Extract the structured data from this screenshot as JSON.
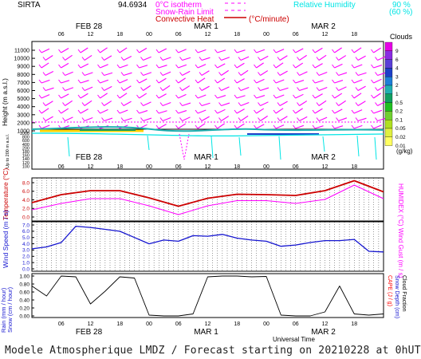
{
  "header": {
    "site": "SIRTA",
    "coord": "94.6934",
    "legend_iso": "0°C isotherm",
    "legend_snow": "Snow-Rain Limit",
    "legend_conv": "Convective Heat",
    "legend_conv_unit": "(°C/minute)",
    "legend_rh": "Relative Humidity",
    "rh_high": "90 %",
    "rh_low": "(60 %)",
    "day_labels": [
      "FEB 28",
      "MAR 1",
      "MAR 2"
    ],
    "hour_labels": [
      "06",
      "12",
      "18",
      "00",
      "06",
      "12",
      "18",
      "00",
      "06",
      "12",
      "18"
    ]
  },
  "colors": {
    "magenta": "#ff00ff",
    "red": "#cc0000",
    "cyan": "#00e5e5",
    "blue": "#1515d0",
    "black": "#000000"
  },
  "footer": "Modele Atmospherique LMDZ / Forecast starting on 20210228 at 0hUT",
  "panels": {
    "wind": {
      "ylabel": "Height (m a.s.l.)",
      "yticks": [
        "11000",
        "10000",
        "9000",
        "8000",
        "7000",
        "6000",
        "5000",
        "4000",
        "3000",
        "2000",
        "1000"
      ],
      "lowticks": [
        "1000",
        "800",
        "600",
        "400",
        "200",
        "180",
        "160",
        "140",
        "120",
        "100"
      ],
      "lowlabel": "Up to 200 m a.s.l."
    },
    "cloud_scale": {
      "title": "Clouds",
      "unit": "(g/kg)",
      "levels": [
        "9",
        "6",
        "4",
        "3",
        "2",
        "1",
        "0.5",
        "0.2",
        "0.1",
        "0.05",
        "0.02",
        "0.01"
      ],
      "colors": [
        "#e600e6",
        "#8a2be2",
        "#5a3fd8",
        "#1e3fc8",
        "#1e7fd8",
        "#20b0b0",
        "#10a060",
        "#20c020",
        "#70d030",
        "#b0e020",
        "#e0f040",
        "#ffff60"
      ]
    },
    "temp": {
      "ylabel": "Temperature (°C)",
      "rlabel": "HUMIDEX (°C)",
      "yticks": [
        "8.0",
        "6.0",
        "4.0",
        "2.0",
        "0.0"
      ]
    },
    "windspeed": {
      "ylabel": "Wind Speed (m / s)",
      "rlabel": "Wind Gust (m / s)",
      "yticks": [
        "7.0",
        "6.0",
        "5.0",
        "4.0",
        "3.0",
        "2.0",
        "1.0",
        "0.0"
      ]
    },
    "rain": {
      "ylabel": "Rain (mm / hour)",
      "ylabel2": "Snow (cm / hour)",
      "rlabel": "CAPE (J / g)",
      "rlabel2": "Snow Depth (cm)",
      "rlabel3": "Cloud Fraction",
      "yticks": [
        "1.00",
        "0.80",
        "0.60",
        "0.40",
        "0.20",
        "0.00"
      ],
      "xlabel": "Universal Time"
    }
  },
  "chart_data": [
    {
      "type": "line",
      "title": "Temperature",
      "ylabel": "Temperature (°C)",
      "ylim": [
        0,
        9
      ],
      "x_hours": [
        0,
        6,
        12,
        18,
        24,
        30,
        36,
        42,
        48,
        54,
        60,
        66,
        72
      ],
      "series": [
        {
          "name": "Temperature",
          "color": "#cc0000",
          "values": [
            3.8,
            5.8,
            6.8,
            6.8,
            5.0,
            2.9,
            4.9,
            5.9,
            5.8,
            5.6,
            6.8,
            9.3,
            6.5
          ]
        },
        {
          "name": "HUMIDEX",
          "color": "#ff00ff",
          "values": [
            2.0,
            3.6,
            4.8,
            4.8,
            3.0,
            0.8,
            3.0,
            4.3,
            4.3,
            3.6,
            4.6,
            8.2,
            4.8
          ]
        }
      ]
    },
    {
      "type": "line",
      "title": "Wind Speed",
      "ylabel": "Wind Speed (m / s)",
      "ylim": [
        0,
        7
      ],
      "x_hours": [
        0,
        3,
        6,
        9,
        12,
        15,
        18,
        21,
        24,
        27,
        30,
        33,
        36,
        39,
        42,
        45,
        48,
        51,
        54,
        57,
        60,
        63,
        66,
        69,
        72
      ],
      "series": [
        {
          "name": "Wind Speed",
          "color": "#1515d0",
          "values": [
            3.2,
            3.5,
            4.2,
            6.8,
            6.6,
            6.3,
            6.0,
            5.0,
            4.0,
            4.6,
            4.4,
            5.3,
            5.2,
            5.5,
            4.9,
            4.6,
            4.4,
            3.6,
            3.8,
            4.2,
            4.5,
            4.5,
            4.7,
            2.8,
            2.7
          ]
        }
      ]
    },
    {
      "type": "line",
      "title": "Cloud Fraction",
      "ylabel": "Rain (mm / hour)",
      "ylim": [
        0,
        1
      ],
      "x_hours": [
        0,
        3,
        6,
        9,
        12,
        15,
        18,
        21,
        24,
        27,
        30,
        33,
        36,
        39,
        42,
        45,
        48,
        51,
        54,
        57,
        60,
        63,
        66,
        69,
        72
      ],
      "series": [
        {
          "name": "Cloud Fraction",
          "color": "#000000",
          "values": [
            0.75,
            0.5,
            1.0,
            0.98,
            0.3,
            0.62,
            0.98,
            0.95,
            0.02,
            0.0,
            0.0,
            0.05,
            0.98,
            1.0,
            1.0,
            0.98,
            0.99,
            0.02,
            0.0,
            0.0,
            0.1,
            0.75,
            0.05,
            0.02,
            0.05
          ]
        }
      ]
    }
  ]
}
